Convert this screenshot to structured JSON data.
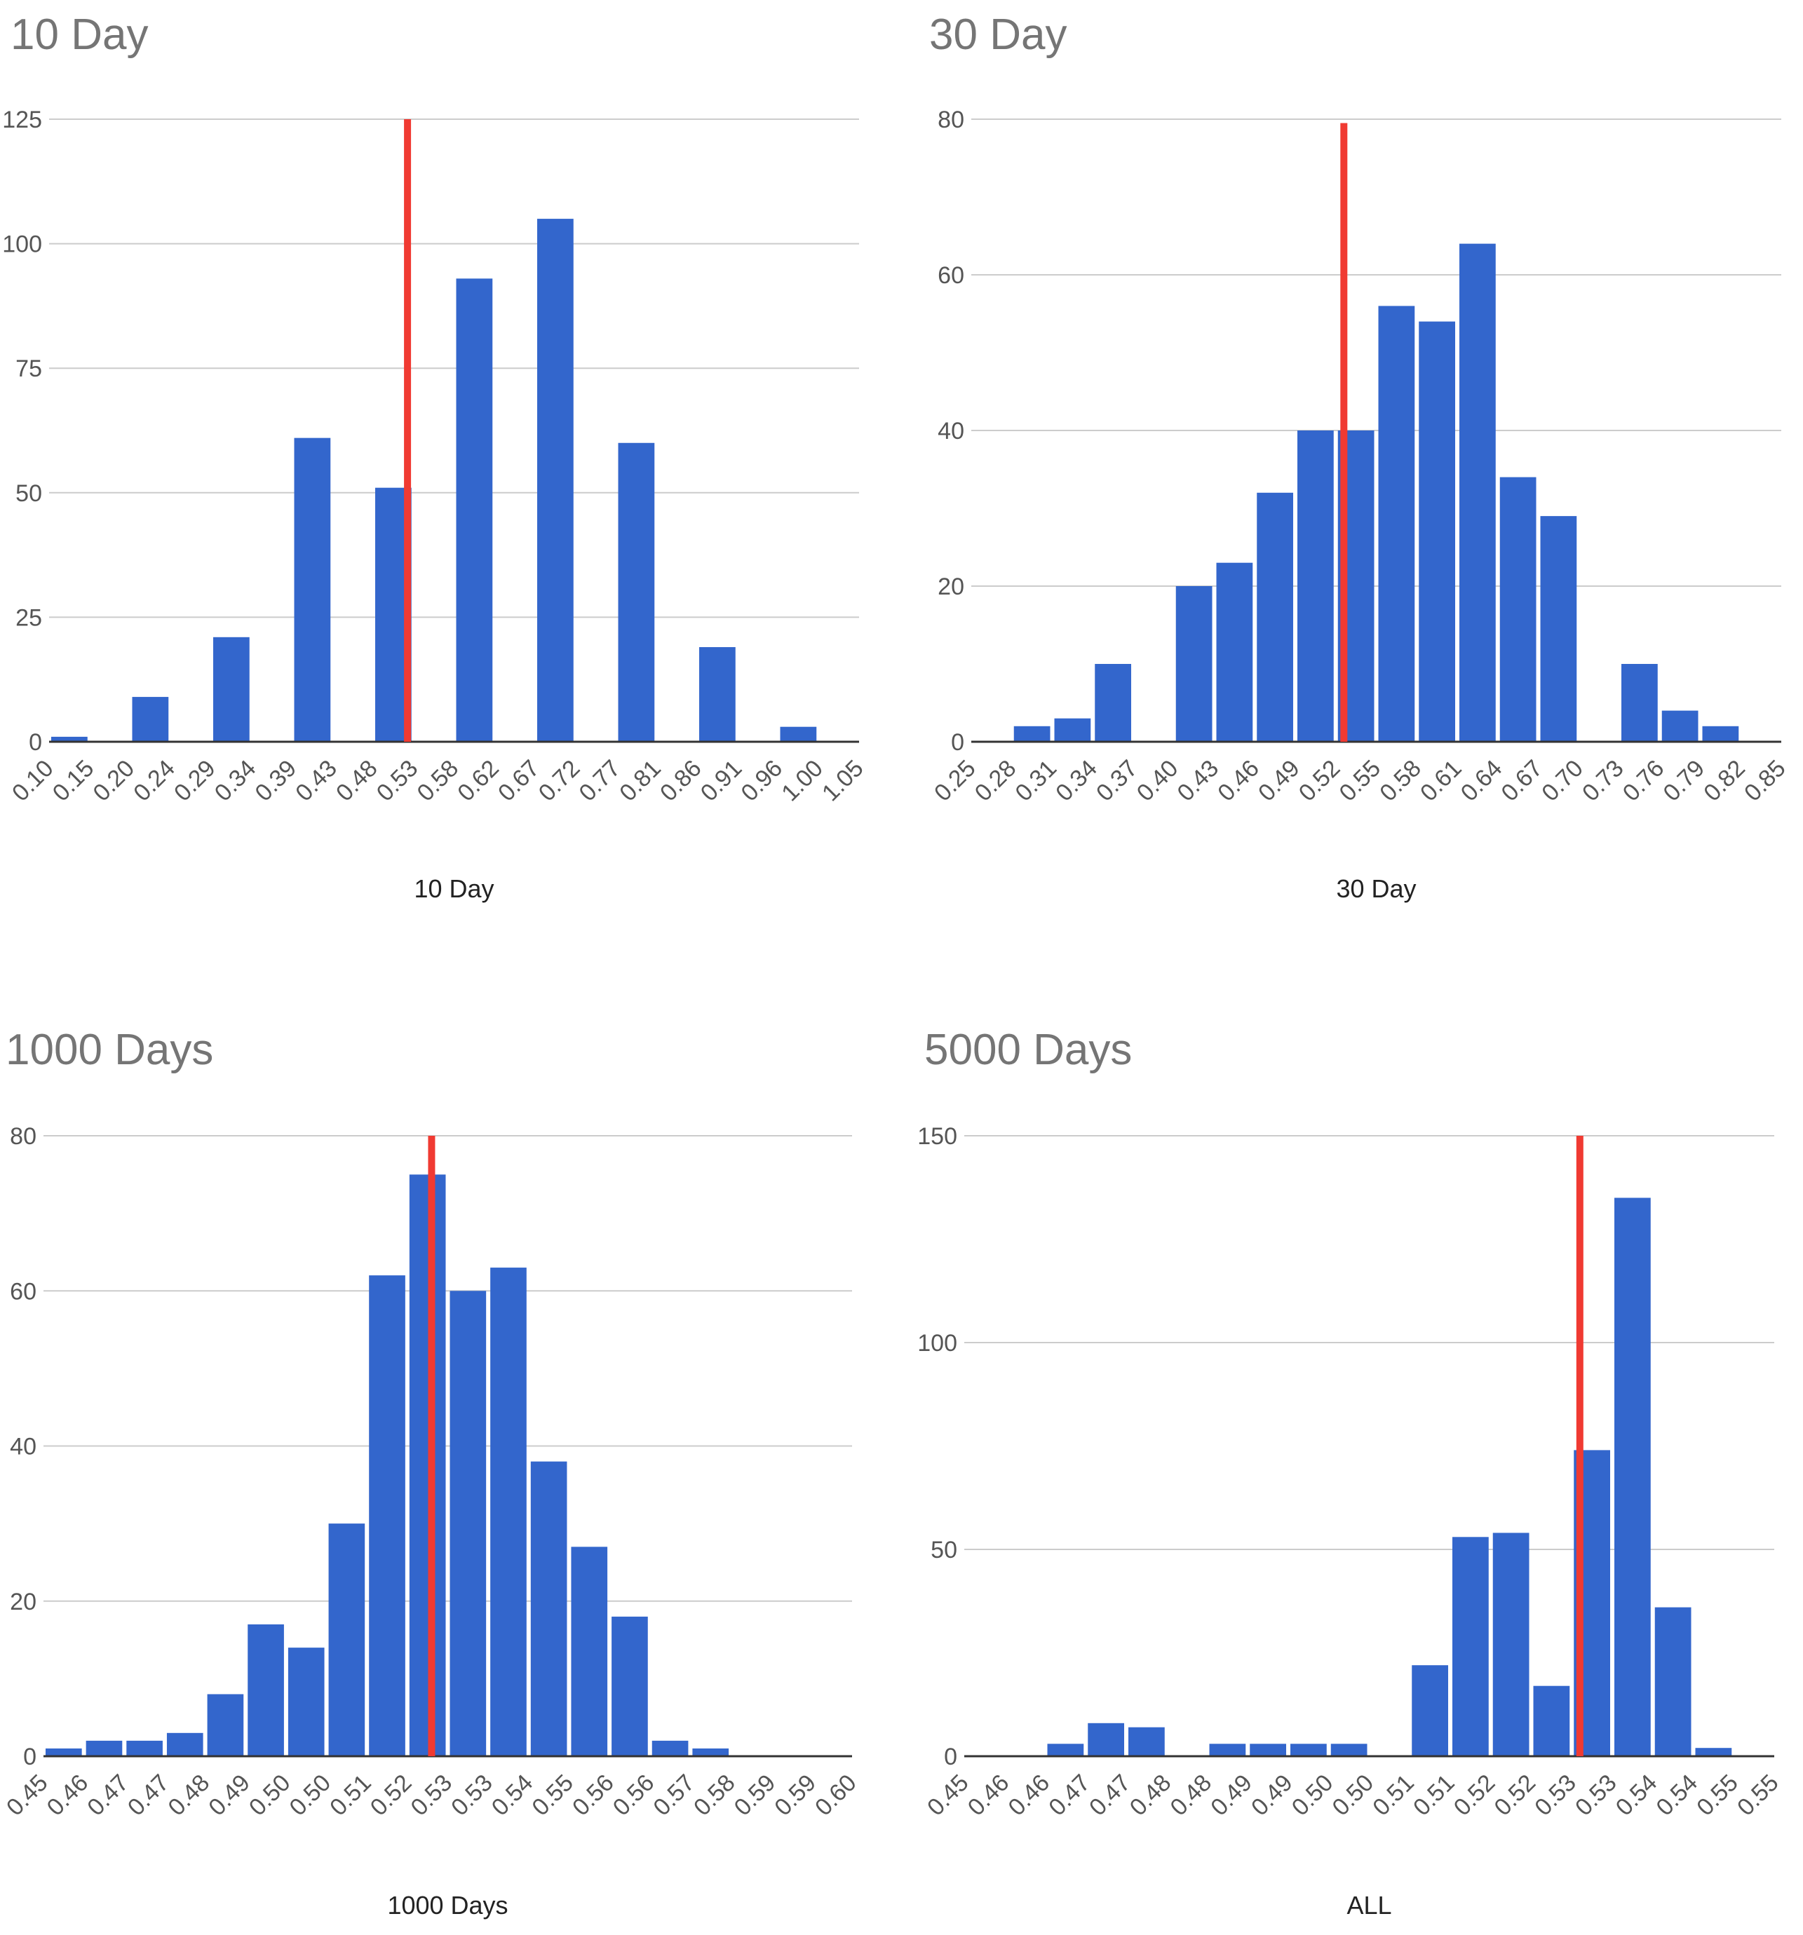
{
  "colors": {
    "bar": "#3366cc",
    "marker": "#f03a32",
    "grid": "#cccccc",
    "axis": "#333333",
    "title": "#757575"
  },
  "chart_data": [
    {
      "type": "bar",
      "title": "10 Day",
      "xlabel": "10 Day",
      "ylabel": "",
      "ylim": [
        0,
        125
      ],
      "yticks": [
        "0",
        "25",
        "50",
        "75",
        "100",
        "125"
      ],
      "xticks": [
        "0.10",
        "0.15",
        "0.20",
        "0.24",
        "0.29",
        "0.34",
        "0.39",
        "0.43",
        "0.48",
        "0.53",
        "0.58",
        "0.62",
        "0.67",
        "0.72",
        "0.77",
        "0.81",
        "0.86",
        "0.91",
        "0.96",
        "1.00",
        "1.05"
      ],
      "values": [
        1,
        0,
        9,
        0,
        21,
        0,
        61,
        0,
        51,
        0,
        93,
        0,
        105,
        0,
        60,
        0,
        19,
        0,
        3,
        0
      ],
      "marker_bin": 8.85,
      "marker_top": 125
    },
    {
      "type": "bar",
      "title": "30 Day",
      "xlabel": "30 Day",
      "ylabel": "",
      "ylim": [
        0,
        80
      ],
      "yticks": [
        "0",
        "20",
        "40",
        "60",
        "80"
      ],
      "xticks": [
        "0.25",
        "0.28",
        "0.31",
        "0.34",
        "0.37",
        "0.40",
        "0.43",
        "0.46",
        "0.49",
        "0.52",
        "0.55",
        "0.58",
        "0.61",
        "0.64",
        "0.67",
        "0.70",
        "0.73",
        "0.76",
        "0.79",
        "0.82",
        "0.85"
      ],
      "values": [
        0,
        2,
        3,
        10,
        0,
        20,
        23,
        32,
        40,
        40,
        56,
        54,
        64,
        34,
        29,
        0,
        10,
        4,
        2,
        0
      ],
      "marker_bin": 9.2,
      "marker_top": 79.5
    },
    {
      "type": "bar",
      "title": "1000 Days",
      "xlabel": "1000 Days",
      "ylabel": "",
      "ylim": [
        0,
        80
      ],
      "yticks": [
        "0",
        "20",
        "40",
        "60",
        "80"
      ],
      "xticks": [
        "0.45",
        "0.46",
        "0.47",
        "0.47",
        "0.48",
        "0.49",
        "0.50",
        "0.50",
        "0.51",
        "0.52",
        "0.53",
        "0.53",
        "0.54",
        "0.55",
        "0.56",
        "0.56",
        "0.57",
        "0.58",
        "0.59",
        "0.59",
        "0.60"
      ],
      "values": [
        1,
        2,
        2,
        3,
        8,
        17,
        14,
        30,
        62,
        75,
        60,
        63,
        38,
        27,
        18,
        2,
        1,
        0,
        0,
        0
      ],
      "marker_bin": 9.6,
      "marker_top": 80
    },
    {
      "type": "bar",
      "title": "5000 Days",
      "xlabel": "ALL",
      "ylabel": "",
      "ylim": [
        0,
        150
      ],
      "yticks": [
        "0",
        "50",
        "100",
        "150"
      ],
      "xticks": [
        "0.45",
        "0.46",
        "0.46",
        "0.47",
        "0.47",
        "0.48",
        "0.48",
        "0.49",
        "0.49",
        "0.50",
        "0.50",
        "0.51",
        "0.51",
        "0.52",
        "0.52",
        "0.53",
        "0.53",
        "0.54",
        "0.54",
        "0.55",
        "0.55"
      ],
      "values": [
        0,
        0,
        3,
        8,
        7,
        0,
        3,
        3,
        3,
        3,
        0,
        22,
        53,
        54,
        17,
        74,
        135,
        36,
        2,
        0
      ],
      "marker_bin": 15.2,
      "marker_top": 150
    }
  ]
}
